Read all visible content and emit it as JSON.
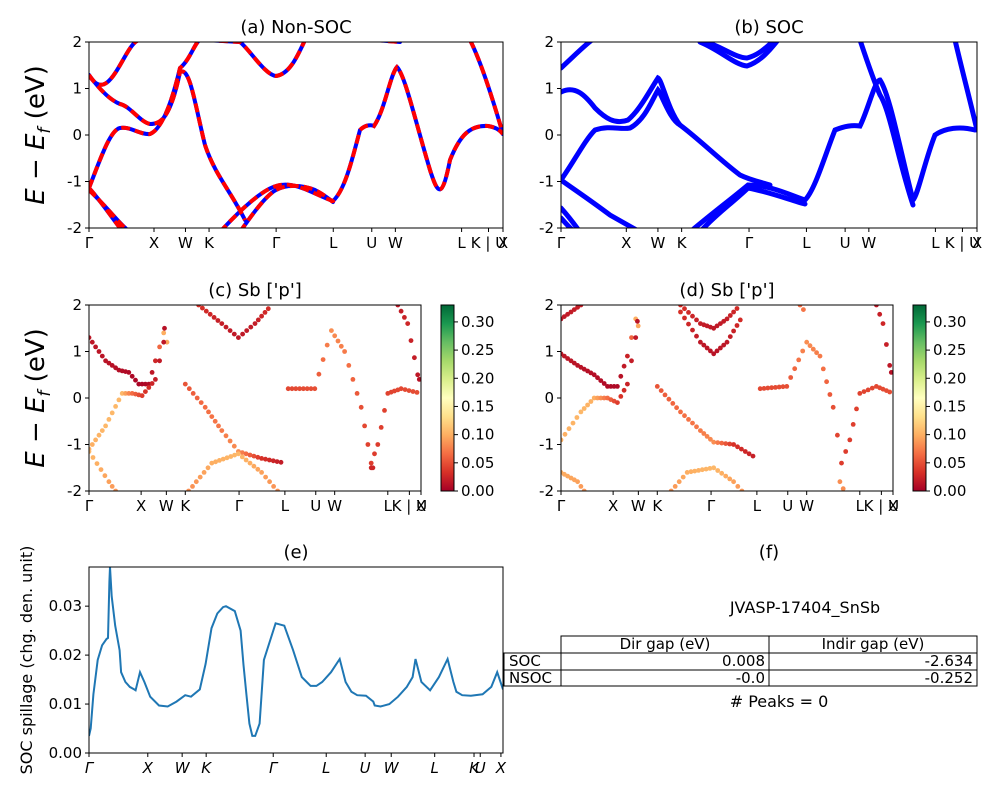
{
  "figure": {
    "ylabel_band": "E − E",
    "ylabel_sub": "f",
    "ylabel_unit": " (eV)",
    "ylabel_spillage": "SOC spillage (chg. den. unit)"
  },
  "kpath": [
    "Γ",
    "X",
    "W",
    "K",
    "Γ",
    "L",
    "U",
    "W",
    "L",
    "K | U",
    "X"
  ],
  "chart_data": [
    {
      "id": "a",
      "type": "line",
      "title": "(a) Non-SOC",
      "ylim": [
        -2,
        2
      ],
      "yticks": [
        "-2",
        "-1",
        "0",
        "1",
        "2"
      ],
      "xticks": [
        "Γ",
        "X",
        "W",
        "K",
        "Γ",
        "L",
        "U",
        "W",
        "L",
        "K | U",
        "X"
      ],
      "series": [
        {
          "color": "#0000ff",
          "style": "solid",
          "values": "non-SOC bands"
        },
        {
          "color": "#ff0000",
          "style": "dashed",
          "values": "non-SOC bands"
        }
      ]
    },
    {
      "id": "b",
      "type": "line",
      "title": "(b) SOC",
      "ylim": [
        -2,
        2
      ],
      "yticks": [
        "-2",
        "-1",
        "0",
        "1",
        "2"
      ],
      "xticks": [
        "Γ",
        "X",
        "W",
        "K",
        "Γ",
        "L",
        "U",
        "W",
        "L",
        "K | U",
        "X"
      ],
      "series": [
        {
          "color": "#0000ff",
          "style": "thick",
          "values": "SOC bands"
        }
      ]
    },
    {
      "id": "c",
      "type": "scatter",
      "title": "(c)  Sb ['p']",
      "ylim": [
        -2,
        2
      ],
      "yticks": [
        "-2",
        "-1",
        "0",
        "1",
        "2"
      ],
      "xticks": [
        "Γ",
        "X",
        "W",
        "K",
        "Γ",
        "L",
        "U",
        "W",
        "L",
        "K | U",
        "X"
      ],
      "colorbar": {
        "range": [
          0.0,
          0.33
        ],
        "ticks": [
          "0.00",
          "0.05",
          "0.10",
          "0.15",
          "0.20",
          "0.25",
          "0.30"
        ],
        "colormap": "RdYlGn"
      }
    },
    {
      "id": "d",
      "type": "scatter",
      "title": "(d) Sb ['p']",
      "ylim": [
        -2,
        2
      ],
      "yticks": [
        "-2",
        "-1",
        "0",
        "1",
        "2"
      ],
      "xticks": [
        "Γ",
        "X",
        "W",
        "K",
        "Γ",
        "L",
        "U",
        "W",
        "L",
        "K | U",
        "X"
      ],
      "colorbar": {
        "range": [
          0.0,
          0.33
        ],
        "ticks": [
          "0.00",
          "0.05",
          "0.10",
          "0.15",
          "0.20",
          "0.25",
          "0.30"
        ],
        "colormap": "RdYlGn"
      }
    },
    {
      "id": "e",
      "type": "line",
      "title": "(e)",
      "ylabel": "SOC spillage (chg. den. unit)",
      "ylim": [
        0.0,
        0.038
      ],
      "yticks": [
        "0.00",
        "0.01",
        "0.02",
        "0.03"
      ],
      "xticks": [
        "Γ",
        "X",
        "W",
        "K",
        "Γ",
        "L",
        "U",
        "W",
        "L",
        "K",
        "U",
        "X"
      ],
      "color": "#1f77b4",
      "x": [
        0,
        0.006,
        0.015,
        0.03,
        0.045,
        0.06,
        0.065,
        0.07,
        0.072,
        0.078,
        0.09,
        0.105,
        0.11,
        0.125,
        0.14,
        0.155,
        0.16,
        0.175,
        0.19,
        0.21,
        0.24,
        0.27,
        0.3,
        0.33,
        0.35,
        0.38,
        0.4,
        0.42,
        0.44,
        0.46,
        0.47,
        0.5,
        0.52,
        0.53,
        0.54,
        0.55,
        0.56,
        0.57,
        0.585,
        0.6,
        0.64,
        0.67,
        0.7,
        0.73,
        0.75,
        0.76,
        0.78,
        0.8,
        0.83,
        0.86,
        0.88,
        0.9,
        0.92,
        0.95,
        0.975,
        0.98,
        1.0,
        1.03,
        1.06,
        1.09,
        1.11,
        1.12,
        1.14,
        1.17,
        1.2,
        1.23,
        1.25,
        1.26,
        1.28,
        1.31,
        1.35,
        1.38,
        1.4,
        1.42
      ],
      "values": [
        0.0035,
        0.005,
        0.012,
        0.019,
        0.022,
        0.0233,
        0.0235,
        0.035,
        0.038,
        0.032,
        0.026,
        0.021,
        0.0165,
        0.0145,
        0.0135,
        0.013,
        0.0128,
        0.0165,
        0.0145,
        0.0115,
        0.0097,
        0.0095,
        0.0105,
        0.0118,
        0.0115,
        0.013,
        0.0182,
        0.0255,
        0.0285,
        0.0298,
        0.03,
        0.029,
        0.025,
        0.018,
        0.012,
        0.006,
        0.0035,
        0.0035,
        0.006,
        0.019,
        0.0265,
        0.026,
        0.021,
        0.0155,
        0.0143,
        0.0137,
        0.0137,
        0.0145,
        0.0165,
        0.0192,
        0.0145,
        0.0125,
        0.0118,
        0.0117,
        0.0105,
        0.0097,
        0.0095,
        0.01,
        0.0115,
        0.0135,
        0.0155,
        0.0192,
        0.0145,
        0.0128,
        0.0155,
        0.0192,
        0.0145,
        0.0125,
        0.0118,
        0.0117,
        0.012,
        0.0135,
        0.0165,
        0.013
      ]
    }
  ],
  "panel_f": {
    "title": "(f)",
    "material": "JVASP-17404_SnSb",
    "table": {
      "headers": [
        "Dir gap (eV)",
        "Indir gap (eV)"
      ],
      "rows": [
        {
          "label": "SOC",
          "dir": "0.008",
          "indir": "-2.634"
        },
        {
          "label": "NSOC",
          "dir": "-0.0",
          "indir": "-0.252"
        }
      ]
    },
    "peaks": "# Peaks = 0"
  }
}
